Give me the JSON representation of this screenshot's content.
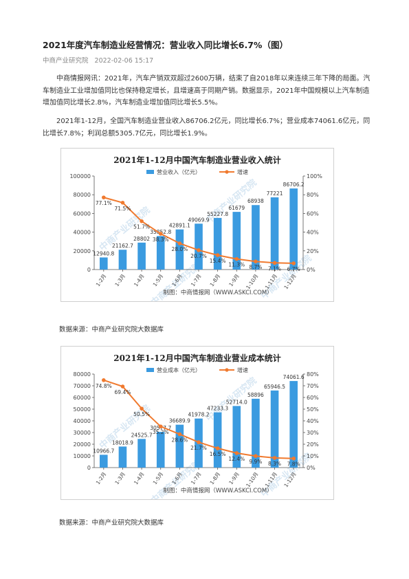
{
  "article": {
    "title": "2021年度汽车制造业经营情况：营业收入同比增长6.7%（图）",
    "source": "中商产业研究院",
    "date": "2022-02-06 15:17",
    "para1": "中商情报网讯：2021年，汽车产销双双超过2600万辆，结束了自2018年以来连续三年下降的局面。汽车制造业工业增加值同比也保持稳定增长，且增速高于同期产销。数据显示，2021年中国规模以上汽车制造增加值同比增长2.8%，汽车制造业增加值同比增长5.5%。",
    "para2": "2021年1-12月，全国汽车制造业营业收入86706.2亿元，同比增长6.7%；营业成本74061.6亿元，同比增长7.8%；利润总额5305.7亿元，同比增长1.9%。",
    "source_note_1": "数据来源：中商产业研究院大数据库",
    "source_note_2": "数据来源：中商产业研究院大数据库"
  },
  "colors": {
    "bar": "#3b9be0",
    "line": "#f07a2f",
    "axis": "#555555",
    "grid": "#e6e6e6",
    "watermark": "#d8e7f3"
  },
  "chart_data": [
    {
      "type": "bar+line",
      "title": "2021年1-12月中国汽车制造业营业收入统计",
      "categories": [
        "1-2月",
        "1-3月",
        "1-4月",
        "1-5月",
        "1-6月",
        "1-7月",
        "1-8月",
        "1-9月",
        "1-10月",
        "1-11月",
        "1-12月"
      ],
      "series": [
        {
          "name": "营业收入（亿元）",
          "kind": "bar",
          "axis": "left",
          "values": [
            12940.8,
            21162.7,
            28802,
            35852.8,
            42891.1,
            49069.9,
            55227.8,
            61679,
            68938,
            77221,
            86706.2
          ],
          "labels": [
            "12940.8",
            "21162.7",
            "28802",
            "35852.8",
            "42891.1",
            "49069.9",
            "55227.8",
            "61679",
            "68938",
            "77221",
            "86706.2"
          ]
        },
        {
          "name": "增速",
          "kind": "line",
          "axis": "right",
          "values": [
            77.1,
            71.5,
            51.7,
            38.3,
            28.0,
            20.7,
            15.4,
            11.3,
            8.7,
            7.1,
            6.7
          ],
          "labels": [
            "77.1%",
            "71.5%",
            "51.7%",
            "38.3%",
            "28.0%",
            "20.7%",
            "15.4%",
            "11.3%",
            "8.7%",
            "7.1%",
            "6.7%"
          ]
        }
      ],
      "ylim_left": [
        0,
        100000
      ],
      "yticks_left": [
        "0",
        "20000",
        "40000",
        "60000",
        "80000",
        "100000"
      ],
      "ylim_right": [
        0,
        100
      ],
      "yticks_right": [
        "0%",
        "20%",
        "40%",
        "60%",
        "80%",
        "100%"
      ],
      "maker": "制图：中商情报网（WWW.ASKCI.COM）",
      "watermark": "中商产业研究院",
      "legend": "top"
    },
    {
      "type": "bar+line",
      "title": "2021年1-12月中国汽车制造业营业成本统计",
      "categories": [
        "1-2月",
        "1-3月",
        "1-4月",
        "1-5月",
        "1-6月",
        "1-7月",
        "1-8月",
        "1-9月",
        "1-10月",
        "1-11月",
        "1-12月"
      ],
      "series": [
        {
          "name": "营业成本（亿元）",
          "kind": "bar",
          "axis": "left",
          "values": [
            10966.7,
            18018.9,
            24525.7,
            30577.7,
            36689.9,
            41978.2,
            47233.3,
            52714.0,
            58896,
            65946.5,
            74061.6
          ],
          "labels": [
            "10966.7",
            "18018.9",
            "24525.7",
            "30577.7",
            "36689.9",
            "41978.2",
            "47233.3",
            "52714.0",
            "58896",
            "65946.5",
            "74061.6"
          ]
        },
        {
          "name": "增速",
          "kind": "line",
          "axis": "right",
          "values": [
            74.8,
            69.4,
            50.5,
            35.2,
            28.6,
            21.7,
            16.5,
            12.4,
            9.9,
            8.3,
            7.8
          ],
          "labels": [
            "74.8%",
            "69.4%",
            "50.5%",
            "35.2%",
            "28.6%",
            "21.7%",
            "16.5%",
            "12.4%",
            "9.9%",
            "8.3%",
            "7.8%"
          ]
        }
      ],
      "ylim_left": [
        0,
        80000
      ],
      "yticks_left": [
        "0",
        "10000",
        "20000",
        "30000",
        "40000",
        "50000",
        "60000",
        "70000",
        "80000"
      ],
      "ylim_right": [
        0,
        80
      ],
      "yticks_right": [
        "0%",
        "10%",
        "20%",
        "30%",
        "40%",
        "50%",
        "60%",
        "70%",
        "80%"
      ],
      "maker": "制图：中商情报网（WWW.ASKCI.COM）",
      "watermark": "中商产业研究院",
      "legend": "top"
    }
  ]
}
